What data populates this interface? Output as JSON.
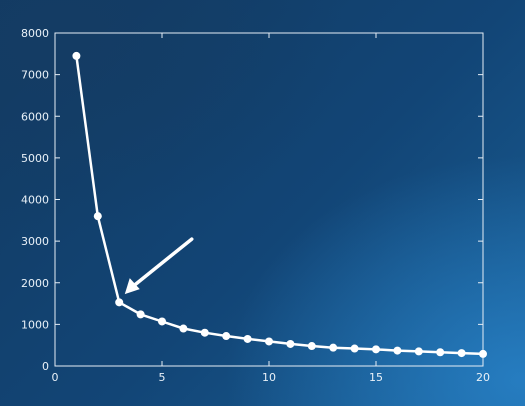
{
  "chart_data": {
    "type": "line",
    "title": "",
    "xlabel": "",
    "ylabel": "",
    "xlim": [
      0,
      20
    ],
    "ylim": [
      0,
      8000
    ],
    "xticks": [
      0,
      5,
      10,
      15,
      20
    ],
    "yticks": [
      0,
      1000,
      2000,
      3000,
      4000,
      5000,
      6000,
      7000,
      8000
    ],
    "grid": false,
    "series": [
      {
        "x": [
          1,
          2,
          3,
          4,
          5,
          6,
          7,
          8,
          9,
          10,
          11,
          12,
          13,
          14,
          15,
          16,
          17,
          18,
          19,
          20
        ],
        "y": [
          7450,
          3600,
          1530,
          1240,
          1070,
          900,
          800,
          720,
          650,
          590,
          530,
          480,
          440,
          420,
          400,
          370,
          350,
          330,
          310,
          290
        ]
      }
    ],
    "annotation": {
      "type": "arrow",
      "target": [
        3.4,
        1800
      ]
    },
    "colors": {
      "line": "#ffffff",
      "axes": "#e6eef6",
      "background": "#124576"
    }
  }
}
